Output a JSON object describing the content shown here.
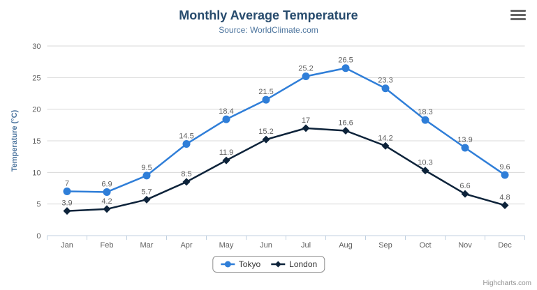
{
  "chart_data": {
    "type": "line",
    "title": "Monthly Average Temperature",
    "subtitle": "Source: WorldClimate.com",
    "categories": [
      "Jan",
      "Feb",
      "Mar",
      "Apr",
      "May",
      "Jun",
      "Jul",
      "Aug",
      "Sep",
      "Oct",
      "Nov",
      "Dec"
    ],
    "series": [
      {
        "name": "Tokyo",
        "color": "#2f7ed8",
        "marker": "circle",
        "values": [
          7,
          6.9,
          9.5,
          14.5,
          18.4,
          21.5,
          25.2,
          26.5,
          23.3,
          18.3,
          13.9,
          9.6
        ]
      },
      {
        "name": "London",
        "color": "#0d233a",
        "marker": "diamond",
        "values": [
          3.9,
          4.2,
          5.7,
          8.5,
          11.9,
          15.2,
          17,
          16.6,
          14.2,
          10.3,
          6.6,
          4.8
        ]
      }
    ],
    "xlabel": "",
    "ylabel": "Temperature (°C)",
    "ylim": [
      0,
      30
    ],
    "ytick_step": 5,
    "grid": true,
    "data_labels": true,
    "legend_position": "bottom"
  },
  "colors": {
    "title": "#274b6d",
    "subtitle": "#4d759e",
    "axis_title": "#4d759e",
    "axis_labels": "#606060",
    "grid": "#d8d8d8",
    "axis_line": "#c0d0e0",
    "data_label": "#606060",
    "legend_text": "#333333",
    "legend_border": "#909090",
    "credits": "#909090",
    "menu_icon": "#666666"
  },
  "menu": {
    "icon": "hamburger-icon"
  },
  "credits": {
    "label": "Highcharts.com"
  }
}
